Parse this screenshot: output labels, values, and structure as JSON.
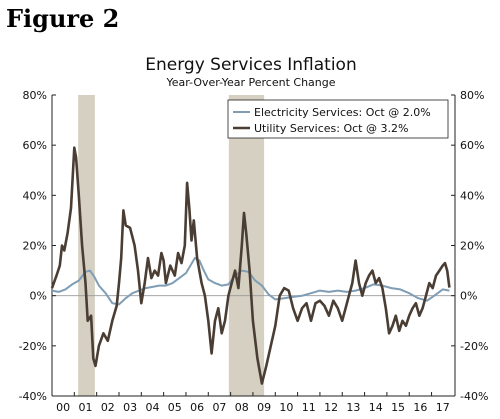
{
  "figure_label": "Figure 2",
  "chart_data": {
    "type": "line",
    "title": "Energy Services Inflation",
    "subtitle": "Year-Over-Year Percent Change",
    "xlabel": "",
    "ylabel": "",
    "x_tick_labels": [
      "00",
      "01",
      "02",
      "03",
      "04",
      "05",
      "06",
      "07",
      "08",
      "09",
      "10",
      "11",
      "12",
      "13",
      "14",
      "15",
      "16",
      "17"
    ],
    "xlim": [
      2000.0,
      2018.05
    ],
    "ylim": [
      -40,
      80
    ],
    "y_ticks": [
      -40,
      -20,
      0,
      20,
      40,
      60,
      80
    ],
    "y_tick_labels": [
      "-40%",
      "-20%",
      "0%",
      "20%",
      "40%",
      "60%",
      "80%"
    ],
    "grid": false,
    "legend_position": "top-right",
    "recessions": [
      [
        2001.17,
        2001.92
      ],
      [
        2007.92,
        2009.5
      ]
    ],
    "series": [
      {
        "name": "Electricity Services: Oct @ 2.0%",
        "color": "#7f9db5",
        "x": [
          2000.0,
          2000.3,
          2000.6,
          2000.9,
          2001.2,
          2001.5,
          2001.7,
          2001.9,
          2002.1,
          2002.4,
          2002.7,
          2003.0,
          2003.3,
          2003.6,
          2003.9,
          2004.2,
          2004.5,
          2004.8,
          2005.1,
          2005.4,
          2005.7,
          2006.0,
          2006.2,
          2006.4,
          2006.6,
          2006.8,
          2007.0,
          2007.3,
          2007.6,
          2007.9,
          2008.2,
          2008.5,
          2008.8,
          2009.1,
          2009.4,
          2009.7,
          2010.0,
          2010.4,
          2010.8,
          2011.2,
          2011.6,
          2012.0,
          2012.4,
          2012.8,
          2013.2,
          2013.6,
          2014.0,
          2014.4,
          2014.8,
          2015.2,
          2015.6,
          2016.0,
          2016.4,
          2016.8,
          2017.2,
          2017.5,
          2017.8
        ],
        "values": [
          2.0,
          1.5,
          2.5,
          4.5,
          6.0,
          9.5,
          10.0,
          7.5,
          4.0,
          1.0,
          -3.0,
          -3.5,
          -1.0,
          1.0,
          2.0,
          3.0,
          3.5,
          4.0,
          4.0,
          5.0,
          7.0,
          9.0,
          12.0,
          15.0,
          14.0,
          10.0,
          6.5,
          5.0,
          4.0,
          4.5,
          8.0,
          10.0,
          9.5,
          6.0,
          4.0,
          0.5,
          -1.5,
          -1.0,
          -0.5,
          0.0,
          1.0,
          2.0,
          1.5,
          2.0,
          1.5,
          2.0,
          3.0,
          4.5,
          4.0,
          3.0,
          2.5,
          1.0,
          -1.0,
          -2.0,
          0.5,
          2.5,
          2.0
        ]
      },
      {
        "name": "Utility Services: Oct @ 3.2%",
        "color": "#4a3d33",
        "x": [
          2000.0,
          2000.2,
          2000.35,
          2000.45,
          2000.55,
          2000.7,
          2000.85,
          2001.0,
          2001.08,
          2001.2,
          2001.35,
          2001.5,
          2001.6,
          2001.75,
          2001.85,
          2001.95,
          2002.1,
          2002.3,
          2002.5,
          2002.7,
          2002.9,
          2003.0,
          2003.1,
          2003.2,
          2003.3,
          2003.5,
          2003.7,
          2003.85,
          2004.0,
          2004.15,
          2004.3,
          2004.45,
          2004.6,
          2004.75,
          2004.9,
          2005.0,
          2005.1,
          2005.3,
          2005.5,
          2005.65,
          2005.8,
          2005.95,
          2006.05,
          2006.15,
          2006.25,
          2006.35,
          2006.5,
          2006.7,
          2006.85,
          2007.0,
          2007.15,
          2007.3,
          2007.45,
          2007.6,
          2007.75,
          2007.9,
          2008.05,
          2008.2,
          2008.35,
          2008.5,
          2008.6,
          2008.7,
          2008.85,
          2009.0,
          2009.2,
          2009.4,
          2009.6,
          2009.8,
          2010.0,
          2010.2,
          2010.4,
          2010.6,
          2010.8,
          2011.0,
          2011.2,
          2011.4,
          2011.6,
          2011.8,
          2012.0,
          2012.2,
          2012.4,
          2012.6,
          2012.8,
          2013.0,
          2013.15,
          2013.3,
          2013.45,
          2013.6,
          2013.75,
          2013.9,
          2014.05,
          2014.2,
          2014.35,
          2014.5,
          2014.65,
          2014.8,
          2014.95,
          2015.1,
          2015.25,
          2015.4,
          2015.55,
          2015.7,
          2015.85,
          2016.0,
          2016.15,
          2016.3,
          2016.45,
          2016.6,
          2016.75,
          2016.9,
          2017.05,
          2017.2,
          2017.35,
          2017.5,
          2017.6,
          2017.7,
          2017.8
        ],
        "values": [
          3.0,
          8.0,
          12.0,
          20.0,
          18.0,
          25.0,
          35.0,
          59.0,
          55.0,
          40.0,
          20.0,
          5.0,
          -10.0,
          -8.0,
          -25.0,
          -28.0,
          -20.0,
          -15.0,
          -18.0,
          -10.0,
          -4.0,
          5.0,
          15.0,
          34.0,
          28.0,
          27.0,
          20.0,
          10.0,
          -3.0,
          5.0,
          15.0,
          7.0,
          10.0,
          8.0,
          17.0,
          14.0,
          5.0,
          12.0,
          8.0,
          17.0,
          13.0,
          20.0,
          45.0,
          35.0,
          22.0,
          30.0,
          15.0,
          5.0,
          0.0,
          -10.0,
          -23.0,
          -10.0,
          -5.0,
          -15.0,
          -10.0,
          0.0,
          5.0,
          10.0,
          3.0,
          20.0,
          33.0,
          25.0,
          10.0,
          -10.0,
          -25.0,
          -35.0,
          -28.0,
          -20.0,
          -12.0,
          0.0,
          3.0,
          2.0,
          -5.0,
          -10.0,
          -5.0,
          -3.0,
          -10.0,
          -3.0,
          -2.0,
          -4.0,
          -8.0,
          -2.0,
          -5.0,
          -10.0,
          -5.0,
          0.0,
          5.0,
          14.0,
          5.0,
          0.0,
          5.0,
          8.0,
          10.0,
          5.0,
          7.0,
          3.0,
          -5.0,
          -15.0,
          -12.0,
          -8.0,
          -14.0,
          -10.0,
          -12.0,
          -8.0,
          -5.0,
          -3.0,
          -8.0,
          -5.0,
          0.0,
          5.0,
          3.0,
          8.0,
          10.0,
          12.0,
          13.0,
          10.0,
          3.2
        ]
      }
    ]
  }
}
